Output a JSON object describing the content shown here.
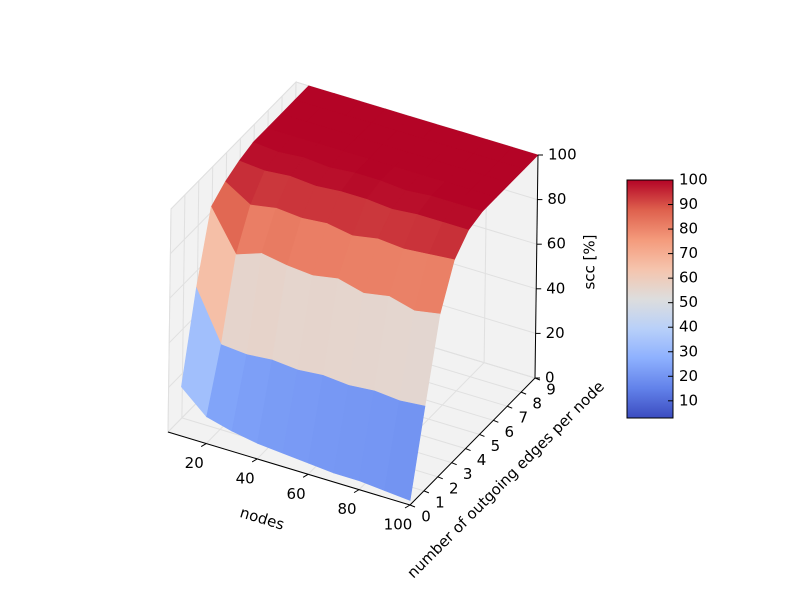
{
  "chart_data": {
    "type": "surface",
    "x_label": "nodes",
    "y_label": "number of outgoing edges per node",
    "z_label": "scc [%]",
    "x": [
      10,
      20,
      30,
      40,
      50,
      60,
      70,
      80,
      90,
      100
    ],
    "y": [
      0,
      1,
      2,
      3,
      4,
      5,
      6,
      7,
      8,
      9
    ],
    "z": [
      [
        22,
        12,
        9,
        7,
        6,
        5,
        4,
        4,
        3,
        2
      ],
      [
        60,
        38,
        37,
        38,
        37,
        38,
        37,
        38,
        37,
        38
      ],
      [
        90,
        72,
        76,
        74,
        73,
        75,
        72,
        74,
        71,
        73
      ],
      [
        95,
        88,
        90,
        89,
        90,
        88,
        90,
        89,
        90,
        91
      ],
      [
        98,
        97,
        98,
        97,
        98,
        98,
        97,
        98,
        98,
        98
      ],
      [
        100,
        99,
        100,
        99,
        100,
        100,
        99,
        100,
        100,
        100
      ],
      [
        100,
        100,
        100,
        100,
        100,
        100,
        100,
        100,
        100,
        100
      ],
      [
        100,
        100,
        100,
        100,
        100,
        100,
        100,
        100,
        100,
        100
      ],
      [
        100,
        100,
        100,
        100,
        100,
        100,
        100,
        100,
        100,
        100
      ],
      [
        100,
        100,
        100,
        100,
        100,
        100,
        100,
        100,
        100,
        100
      ]
    ],
    "xlim": [
      5,
      100
    ],
    "ylim": [
      0,
      9
    ],
    "zlim": [
      0,
      100
    ],
    "xticks": [
      20,
      40,
      60,
      80,
      100
    ],
    "yticks": [
      0,
      1,
      2,
      3,
      4,
      5,
      6,
      7,
      8,
      9
    ],
    "zticks": [
      0,
      20,
      40,
      60,
      80,
      100
    ],
    "colormap": "coolwarm",
    "clim": [
      3,
      100
    ],
    "cticks": [
      10,
      20,
      30,
      40,
      50,
      60,
      70,
      80,
      90,
      100
    ],
    "grid": true
  }
}
